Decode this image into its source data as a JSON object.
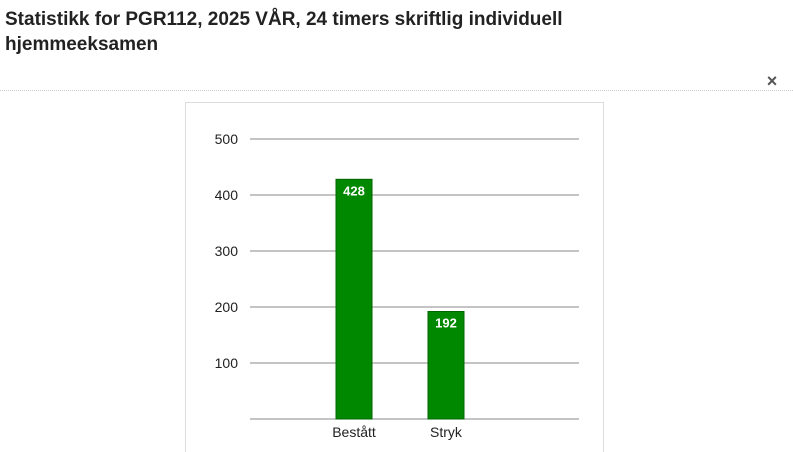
{
  "dialog": {
    "title": "Statistikk for PGR112, 2025 VÅR, 24 timers skriftlig individuell hjemmeeksamen",
    "close_label": "×"
  },
  "chart_data": {
    "type": "bar",
    "categories": [
      "Bestått",
      "Stryk"
    ],
    "values": [
      428,
      192
    ],
    "data_labels": [
      "428",
      "192"
    ],
    "title": "",
    "xlabel": "",
    "ylabel": "",
    "ylim": [
      0,
      500
    ],
    "yticks": [
      100,
      200,
      300,
      400,
      500
    ],
    "grid": true,
    "bar_color": "#008800",
    "bar_border_color": "#006600",
    "grid_color": "#888888"
  }
}
